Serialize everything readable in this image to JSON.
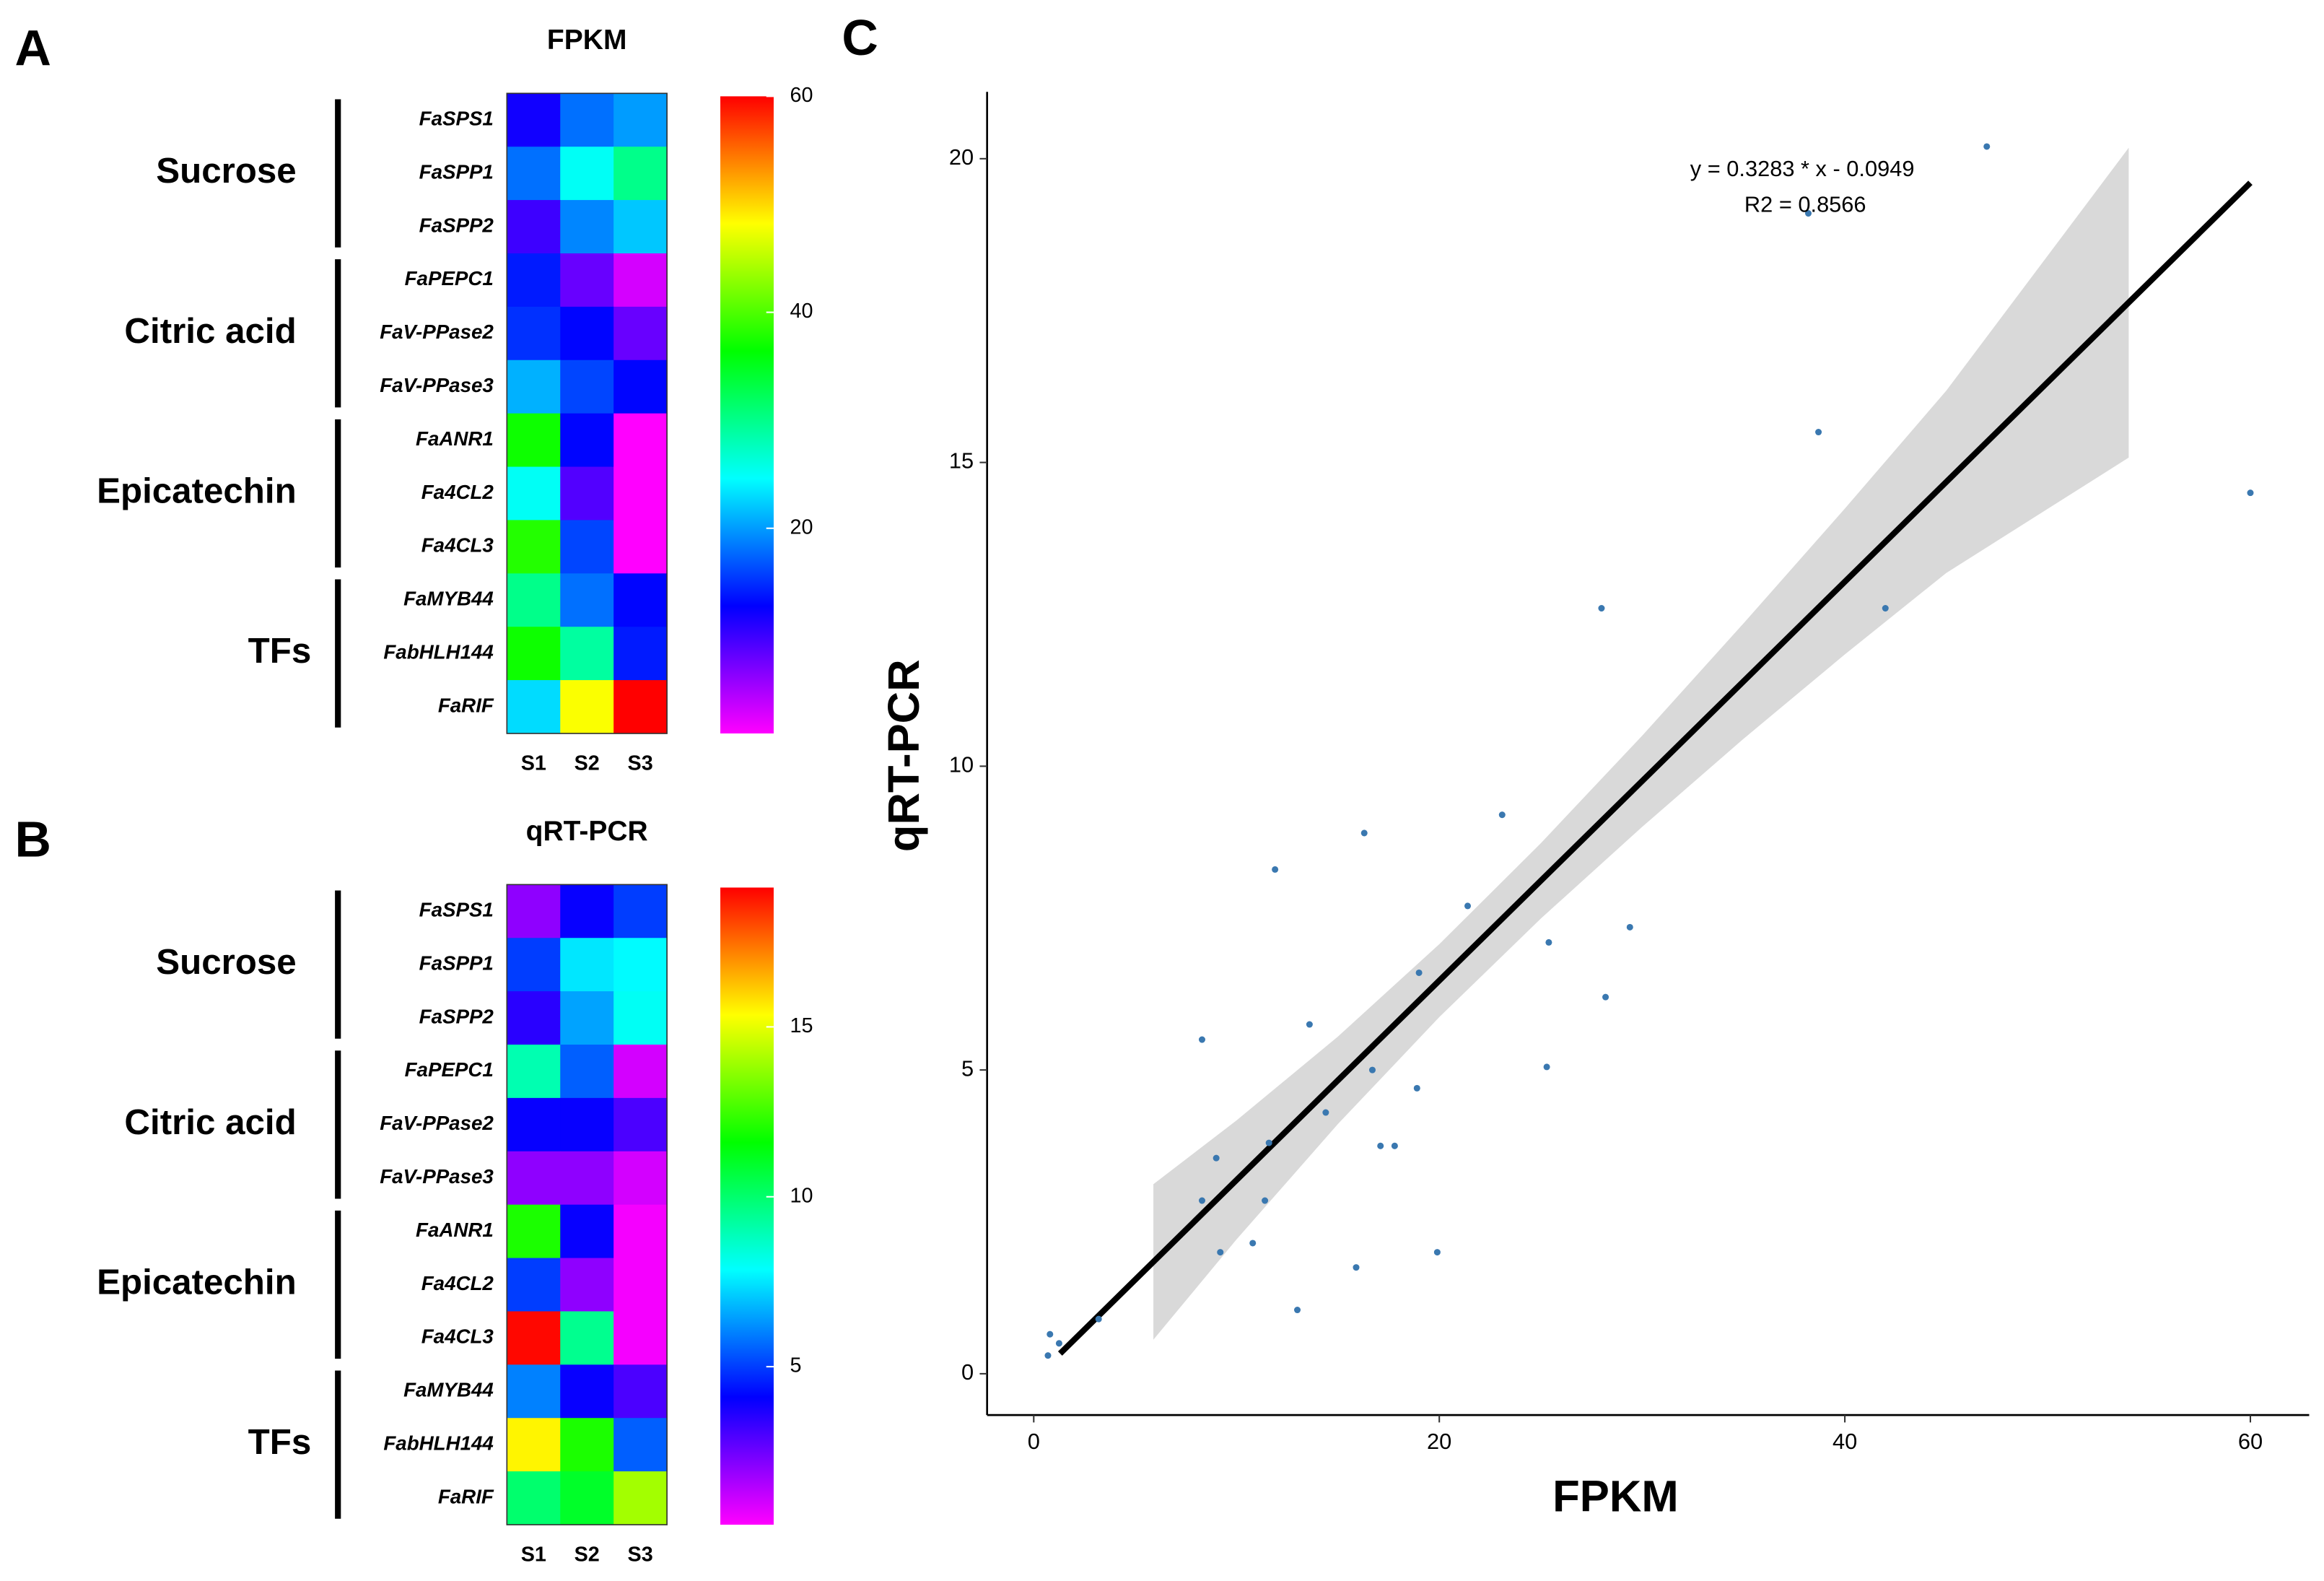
{
  "chart_data": [
    {
      "type": "heatmap",
      "panel": "A",
      "title": "FPKM",
      "groups": [
        "Sucrose",
        "Citric acid",
        "Epicatechin",
        "TFs"
      ],
      "rows": [
        "FaSPS1",
        "FaSPP1",
        "FaSPP2",
        "FaPEPC1",
        "FaV-PPase2",
        "FaV-PPase3",
        "FaANR1",
        "Fa4CL2",
        "Fa4CL3",
        "FaMYB44",
        "FabHLH144",
        "FaRIF"
      ],
      "columns": [
        "S1",
        "S2",
        "S3"
      ],
      "z": [
        [
          12,
          18,
          20
        ],
        [
          18,
          25,
          30
        ],
        [
          10,
          19,
          22
        ],
        [
          14,
          8,
          3
        ],
        [
          15,
          13,
          8
        ],
        [
          21,
          16,
          13
        ],
        [
          37,
          13,
          1
        ],
        [
          25,
          9,
          1
        ],
        [
          38,
          16,
          1
        ],
        [
          30,
          18,
          13
        ],
        [
          37,
          29,
          14
        ],
        [
          23,
          48,
          60
        ]
      ],
      "colorscale": [
        "#ff00ff",
        "#0000ff",
        "#00ffff",
        "#00ff00",
        "#ffff00",
        "#ff0000"
      ],
      "zlim": [
        1,
        60
      ],
      "zticks": [
        20,
        40,
        60
      ]
    },
    {
      "type": "heatmap",
      "panel": "B",
      "title": "qRT-PCR",
      "groups": [
        "Sucrose",
        "Citric acid",
        "Epicatechin",
        "TFs"
      ],
      "rows": [
        "FaSPS1",
        "FaSPP1",
        "FaSPP2",
        "FaPEPC1",
        "FaV-PPase2",
        "FaV-PPase3",
        "FaANR1",
        "Fa4CL2",
        "Fa4CL3",
        "FaMYB44",
        "FabHLH144",
        "FaRIF"
      ],
      "columns": [
        "S1",
        "S2",
        "S3"
      ],
      "z": [
        [
          2,
          4,
          5
        ],
        [
          5,
          7.5,
          7.8
        ],
        [
          3.5,
          6.5,
          8
        ],
        [
          9,
          5.5,
          1
        ],
        [
          4,
          4,
          3
        ],
        [
          2,
          2,
          1
        ],
        [
          12,
          4,
          0.5
        ],
        [
          5,
          2,
          0.5
        ],
        [
          19,
          9.5,
          0.5
        ],
        [
          6,
          4,
          3
        ],
        [
          15.5,
          12,
          5.5
        ],
        [
          10,
          11,
          14
        ]
      ],
      "colorscale": [
        "#ff00ff",
        "#0000ff",
        "#00ffff",
        "#00ff00",
        "#ffff00",
        "#ff0000"
      ],
      "zlim": [
        0.35,
        19.1
      ],
      "zticks": [
        5,
        10,
        15
      ]
    },
    {
      "type": "scatter",
      "panel": "C",
      "xlabel": "FPKM",
      "ylabel": "qRT-PCR",
      "x": [
        47.0,
        38.2,
        38.7,
        60,
        28.0,
        42.0,
        23.1,
        16.3,
        11.9,
        21.4,
        29.4,
        25.4,
        19.0,
        28.2,
        13.6,
        8.3,
        25.3,
        16.7,
        18.9,
        14.4,
        11.6,
        17.1,
        17.8,
        9.0,
        8.3,
        11.4,
        10.8,
        9.2,
        19.9,
        15.9,
        13.0,
        3.2,
        0.8,
        1.25,
        0.7
      ],
      "y": [
        20.2,
        19.1,
        15.5,
        14.5,
        12.6,
        12.6,
        9.2,
        8.9,
        8.3,
        7.7,
        7.35,
        7.1,
        6.6,
        6.2,
        5.75,
        5.5,
        5.05,
        5.0,
        4.7,
        4.3,
        3.8,
        3.75,
        3.75,
        3.55,
        2.85,
        2.85,
        2.15,
        2.0,
        2.0,
        1.75,
        1.05,
        0.9,
        0.65,
        0.5,
        0.3
      ],
      "color": "#3a78b0",
      "fit": {
        "slope": 0.3283,
        "intercept": -0.0949,
        "x": [
          1.3,
          60
        ],
        "color": "#000000"
      },
      "band": {
        "x": [
          5.9,
          10,
          15,
          20,
          25,
          30,
          35,
          40,
          45,
          54
        ],
        "lower": [
          0.56,
          2.21,
          4.11,
          5.87,
          7.49,
          9.0,
          10.45,
          11.84,
          13.18,
          15.08
        ],
        "upper": [
          3.12,
          4.17,
          5.55,
          7.07,
          8.73,
          10.5,
          12.35,
          14.24,
          16.18,
          20.18
        ],
        "color": "#d9d9d9"
      },
      "annotations": [
        "y = 0.3283 * x - 0.0949",
        "R2 = 0.8566"
      ],
      "xlim": [
        -2.3,
        62.9
      ],
      "xticks": [
        0,
        20,
        40,
        60
      ],
      "ylim": [
        -0.68,
        21.1
      ],
      "yticks": [
        0,
        5,
        10,
        15,
        20
      ]
    }
  ]
}
